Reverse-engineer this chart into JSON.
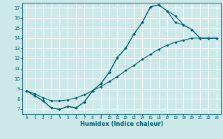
{
  "title": "",
  "xlabel": "Humidex (Indice chaleur)",
  "bg_color": "#cce8e8",
  "grid_color": "#ffffff",
  "line_color": "#006070",
  "xlim": [
    -0.5,
    23.5
  ],
  "ylim": [
    6.5,
    17.5
  ],
  "xticks": [
    0,
    1,
    2,
    3,
    4,
    5,
    6,
    7,
    8,
    9,
    10,
    11,
    12,
    13,
    14,
    15,
    16,
    17,
    18,
    19,
    20,
    21,
    22,
    23
  ],
  "yticks": [
    7,
    8,
    9,
    10,
    11,
    12,
    13,
    14,
    15,
    16,
    17
  ],
  "line1_x": [
    0,
    1,
    2,
    3,
    4,
    5,
    6,
    7,
    8,
    9,
    10,
    11,
    12,
    13,
    14,
    15,
    16,
    17,
    18,
    19,
    20,
    21,
    22,
    23
  ],
  "line1_y": [
    8.8,
    8.3,
    7.8,
    7.1,
    6.95,
    7.25,
    7.1,
    7.7,
    8.8,
    9.5,
    10.6,
    12.1,
    13.0,
    14.4,
    15.55,
    17.1,
    17.3,
    16.7,
    16.2,
    15.3,
    14.85,
    14.0,
    14.0,
    14.0
  ],
  "line2_x": [
    0,
    1,
    2,
    3,
    4,
    5,
    6,
    7,
    8,
    9,
    10,
    11,
    12,
    13,
    14,
    15,
    16,
    17,
    18,
    19,
    20,
    21,
    22,
    23
  ],
  "line2_y": [
    8.8,
    8.3,
    7.8,
    7.1,
    6.95,
    7.25,
    7.1,
    7.7,
    8.8,
    9.5,
    10.6,
    12.1,
    13.0,
    14.4,
    15.55,
    17.1,
    17.3,
    16.7,
    15.55,
    15.3,
    14.85,
    14.0,
    14.0,
    14.0
  ],
  "line3_x": [
    0,
    1,
    2,
    3,
    4,
    5,
    6,
    7,
    8,
    9,
    10,
    11,
    12,
    13,
    14,
    15,
    16,
    17,
    18,
    19,
    20,
    21,
    22,
    23
  ],
  "line3_y": [
    8.8,
    8.5,
    8.1,
    7.8,
    7.8,
    7.9,
    8.1,
    8.4,
    8.8,
    9.2,
    9.7,
    10.2,
    10.8,
    11.3,
    11.9,
    12.4,
    12.9,
    13.3,
    13.6,
    13.8,
    14.0,
    14.0,
    14.0,
    14.0
  ]
}
